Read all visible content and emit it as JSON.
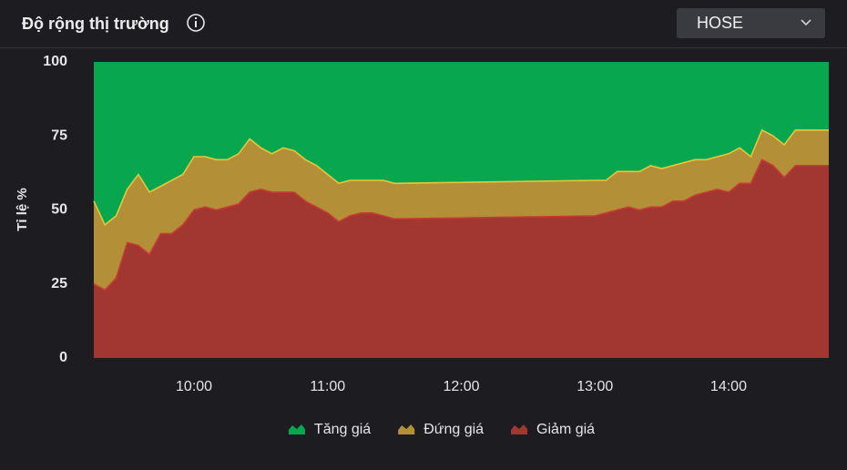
{
  "chart_data": {
    "type": "stacked_area",
    "title": "Độ rộng thị trường",
    "y_label": "Tỉ lệ %",
    "x": [
      "9:15",
      "9:20",
      "9:25",
      "9:30",
      "9:35",
      "9:40",
      "9:45",
      "9:50",
      "9:55",
      "10:00",
      "10:05",
      "10:10",
      "10:15",
      "10:20",
      "10:25",
      "10:30",
      "10:35",
      "10:40",
      "10:45",
      "10:50",
      "10:55",
      "11:00",
      "11:05",
      "11:10",
      "11:15",
      "11:20",
      "11:25",
      "11:30",
      "13:00",
      "13:05",
      "13:10",
      "13:15",
      "13:20",
      "13:25",
      "13:30",
      "13:35",
      "13:40",
      "13:45",
      "13:50",
      "13:55",
      "14:00",
      "14:05",
      "14:10",
      "14:15",
      "14:20",
      "14:25",
      "14:30",
      "14:35",
      "14:40",
      "14:45"
    ],
    "xlim": [
      "9:15",
      "14:45"
    ],
    "xticks": [
      "10:00",
      "11:00",
      "12:00",
      "13:00",
      "14:00"
    ],
    "ylim": [
      0,
      100
    ],
    "yticks": [
      0,
      25,
      50,
      75,
      100
    ],
    "grid": false,
    "legend": "bottom",
    "series": [
      {
        "name": "Tăng giá",
        "color": "#08a64e",
        "edge": "#0bb457",
        "values": [
          47,
          55,
          52,
          43,
          38,
          44,
          42,
          40,
          38,
          32,
          32,
          33,
          33,
          31,
          26,
          29,
          31,
          29,
          30,
          33,
          35,
          38,
          41,
          40,
          40,
          40,
          40,
          41,
          40,
          40,
          37,
          37,
          37,
          35,
          36,
          35,
          34,
          33,
          33,
          32,
          31,
          29,
          32,
          23,
          25,
          28,
          23,
          23,
          23,
          23
        ]
      },
      {
        "name": "Đứng giá",
        "color": "#b38f38",
        "edge": "#e6c63c",
        "values": [
          28,
          22,
          21,
          18,
          24,
          21,
          16,
          18,
          17,
          18,
          17,
          17,
          16,
          17,
          18,
          14,
          13,
          15,
          14,
          14,
          14,
          13,
          13,
          12,
          11,
          11,
          12,
          12,
          12,
          11,
          13,
          12,
          13,
          14,
          13,
          12,
          13,
          12,
          11,
          11,
          13,
          12,
          9,
          10,
          10,
          11,
          12,
          12,
          12,
          12
        ]
      },
      {
        "name": "Giảm giá",
        "color": "#a23731",
        "edge": "#c43d35",
        "values": [
          25,
          23,
          27,
          39,
          38,
          35,
          42,
          42,
          45,
          50,
          51,
          50,
          51,
          52,
          56,
          57,
          56,
          56,
          56,
          53,
          51,
          49,
          46,
          48,
          49,
          49,
          48,
          47,
          48,
          49,
          50,
          51,
          50,
          51,
          51,
          53,
          53,
          55,
          56,
          57,
          56,
          59,
          59,
          67,
          65,
          61,
          65,
          65,
          65,
          65
        ]
      }
    ]
  },
  "market_selector": {
    "value": "HOSE"
  }
}
